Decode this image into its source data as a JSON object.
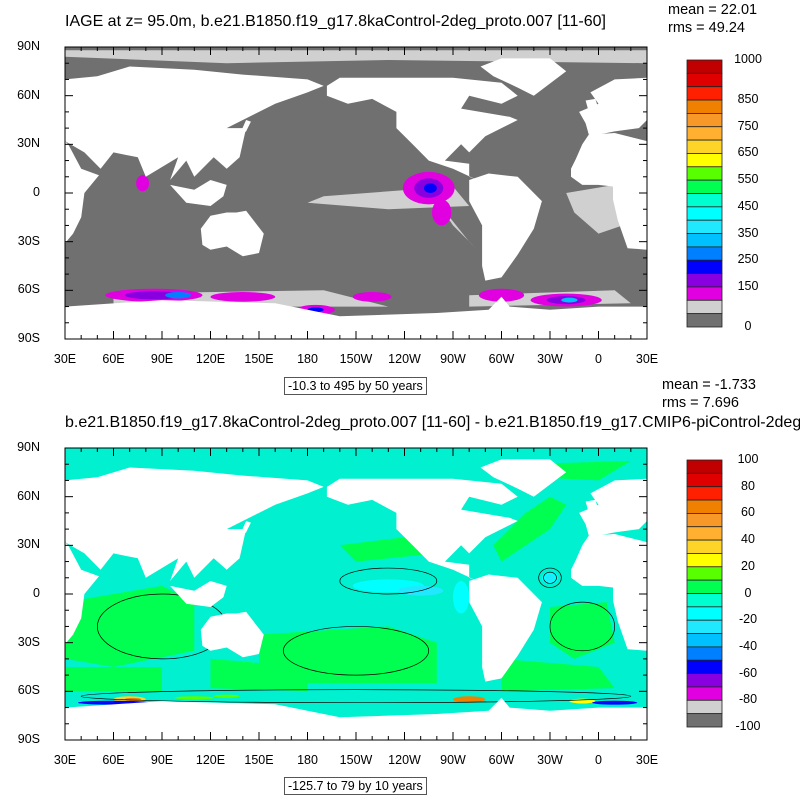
{
  "panels": [
    {
      "title": "IAGE at z=  95.0m, b.e21.B1850.f19_g17.8kaControl-2deg_proto.007 [11-60]",
      "mean": "mean = 22.01",
      "rms": "rms = 49.24",
      "range_note": "-10.3 to 495 by 50 years",
      "colorbar_labels": [
        "1000",
        "850",
        "750",
        "650",
        "550",
        "450",
        "350",
        "250",
        "150",
        "0"
      ],
      "ocean_color": "#707070",
      "land_color": "#ffffff"
    },
    {
      "title": "b.e21.B1850.f19_g17.8kaControl-2deg_proto.007 [11-60] - b.e21.B1850.f19_g17.CMIP6-piControl-2deg",
      "mean": "mean = -1.733",
      "rms": "rms = 7.696",
      "range_note": "-125.7 to 79 by 10 years",
      "colorbar_labels": [
        "100",
        "80",
        "60",
        "40",
        "20",
        "0",
        "-20",
        "-40",
        "-60",
        "-80",
        "-100"
      ],
      "ocean_color": "#00f0d0",
      "land_color": "#ffffff"
    }
  ],
  "lat_labels": [
    "90N",
    "60N",
    "30N",
    "0",
    "30S",
    "60S",
    "90S"
  ],
  "lon_labels": [
    "30E",
    "60E",
    "90E",
    "120E",
    "150E",
    "180",
    "150W",
    "120W",
    "90W",
    "60W",
    "30W",
    "0",
    "30E"
  ],
  "colorbar_colors": [
    "#c00000",
    "#e00000",
    "#ff2000",
    "#f08000",
    "#f89828",
    "#ffb030",
    "#ffd428",
    "#ffff00",
    "#58ff00",
    "#00ff50",
    "#00ffd0",
    "#00ffff",
    "#20e8ff",
    "#00c0ff",
    "#0080ff",
    "#0000ff",
    "#8800e0",
    "#e000e0",
    "#d0d0d0",
    "#707070"
  ]
}
